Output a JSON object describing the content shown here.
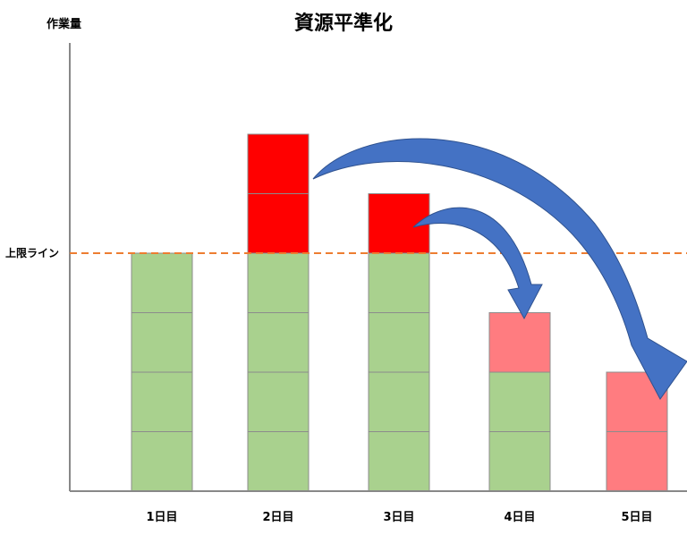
{
  "chart_data": {
    "type": "bar",
    "stacked": true,
    "title": "資源平準化",
    "ylabel": "作業量",
    "xlabel": "",
    "categories": [
      "1日目",
      "2日目",
      "3日目",
      "4日目",
      "5日目"
    ],
    "series": [
      {
        "values": [
          4,
          4,
          4,
          2,
          0
        ],
        "color": "#a9d18e"
      },
      {
        "values": [
          0,
          2,
          1,
          0,
          0
        ],
        "color": "#ff0000"
      },
      {
        "values": [
          0,
          0,
          0,
          1,
          2
        ],
        "color": "#ff7c80"
      }
    ],
    "limit_line": {
      "label": "上限ライン",
      "value": 4,
      "color": "#ed7d31",
      "style": "dashed"
    },
    "arrows": [
      {
        "from": "2日目",
        "to": "5日目",
        "color": "#4472c4"
      },
      {
        "from": "3日目",
        "to": "4日目",
        "color": "#4472c4"
      }
    ],
    "ylim": [
      0,
      7.5
    ],
    "grid": false
  }
}
